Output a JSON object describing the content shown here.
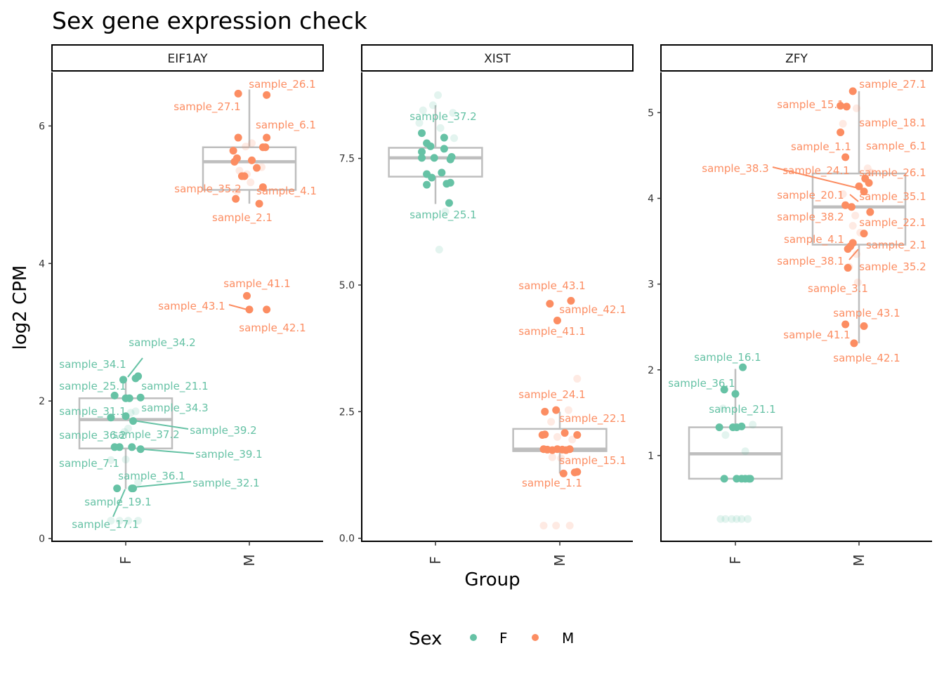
{
  "chart_data": {
    "type": "scatter",
    "title": "Sex gene expression check",
    "xlabel": "Group",
    "ylabel": "log2 CPM",
    "categories": [
      "F",
      "M"
    ],
    "legend": {
      "title": "Sex",
      "position": "bottom",
      "entries": [
        "F",
        "M"
      ]
    },
    "colors": {
      "F": "#66C2A5",
      "M": "#FC8D62",
      "box": "#BEBEBE"
    },
    "grid": false,
    "panels": [
      {
        "name": "EIF1AY",
        "ylim": [
          -0.04,
          6.78
        ],
        "yticks": [
          0,
          2,
          4,
          6
        ],
        "ytick_labels": [
          "0",
          "2",
          "4",
          "6"
        ],
        "boxes": {
          "F": {
            "lower": 0.72,
            "q1": 1.31,
            "median": 1.73,
            "q3": 2.04,
            "upper": 2.3
          },
          "M": {
            "lower": 4.87,
            "q1": 5.07,
            "median": 5.48,
            "q3": 5.69,
            "upper": 6.53
          }
        },
        "points": {
          "F": [
            [
              2.36,
              0.1,
              1
            ],
            [
              2.31,
              -0.02,
              1
            ],
            [
              2.33,
              0.08,
              1
            ],
            [
              2.08,
              -0.09,
              1
            ],
            [
              2.04,
              0,
              1
            ],
            [
              2.04,
              0.03,
              1
            ],
            [
              2.05,
              0.12,
              1
            ],
            [
              1.76,
              -0.12,
              1
            ],
            [
              1.78,
              0,
              1
            ],
            [
              1.71,
              0.06,
              1
            ],
            [
              1.33,
              -0.09,
              1
            ],
            [
              1.33,
              -0.05,
              1
            ],
            [
              1.33,
              0.05,
              1
            ],
            [
              1.3,
              0.12,
              1
            ],
            [
              0.73,
              -0.07,
              1
            ],
            [
              0.73,
              0.05,
              1
            ],
            [
              0.73,
              0.06,
              1
            ],
            [
              1.83,
              0.04,
              0
            ],
            [
              1.85,
              0.08,
              0
            ],
            [
              1.6,
              0.02,
              0
            ],
            [
              1.55,
              -0.01,
              0
            ],
            [
              1.14,
              -0.12,
              0
            ],
            [
              1.15,
              0,
              0
            ],
            [
              0.82,
              0.1,
              0
            ],
            [
              0.26,
              -0.12,
              0
            ],
            [
              0.26,
              -0.05,
              0
            ],
            [
              0.26,
              0.02,
              0
            ],
            [
              0.26,
              0.1,
              0
            ]
          ],
          "M": [
            [
              6.47,
              -0.09,
              1
            ],
            [
              6.45,
              0.14,
              1
            ],
            [
              5.83,
              0.14,
              1
            ],
            [
              5.83,
              -0.09,
              1
            ],
            [
              5.69,
              0.13,
              1
            ],
            [
              5.69,
              0.11,
              1
            ],
            [
              5.64,
              -0.13,
              1
            ],
            [
              5.53,
              -0.1,
              1
            ],
            [
              5.48,
              -0.12,
              1
            ],
            [
              5.5,
              0.02,
              1
            ],
            [
              5.39,
              0.06,
              1
            ],
            [
              5.27,
              -0.04,
              1
            ],
            [
              5.27,
              -0.06,
              1
            ],
            [
              5.11,
              0.11,
              1
            ],
            [
              4.94,
              -0.11,
              1
            ],
            [
              4.87,
              0.08,
              1
            ],
            [
              3.53,
              -0.02,
              1
            ],
            [
              3.33,
              0,
              1
            ],
            [
              3.33,
              0.14,
              1
            ],
            [
              5.75,
              0.02,
              0
            ],
            [
              5.7,
              -0.03,
              0
            ],
            [
              5.4,
              0.1,
              0
            ],
            [
              5.35,
              -0.08,
              0
            ],
            [
              5.3,
              -0.02,
              0
            ],
            [
              5.18,
              0.01,
              0
            ],
            [
              5.05,
              -0.1,
              0
            ]
          ]
        },
        "labels": [
          "sample_26.1",
          "sample_27.1",
          "sample_6.1",
          "sample_35.2",
          "sample_4.1",
          "sample_2.1",
          "sample_41.1",
          "sample_43.1",
          "sample_42.1",
          "sample_34.2",
          "sample_34.1",
          "sample_25.1",
          "sample_21.1",
          "sample_34.3",
          "sample_31.1",
          "sample_39.2",
          "sample_36.2",
          "sample_37.2",
          "sample_39.1",
          "sample_7.1",
          "sample_36.1",
          "sample_32.1",
          "sample_19.1",
          "sample_17.1"
        ]
      },
      {
        "name": "XIST",
        "ylim": [
          -0.06,
          9.2
        ],
        "yticks": [
          0,
          2.5,
          5,
          7.5
        ],
        "ytick_labels": [
          "0.0",
          "2.5",
          "5.0",
          "7.5"
        ],
        "boxes": {
          "F": {
            "lower": 6.6,
            "q1": 7.14,
            "median": 7.51,
            "q3": 7.71,
            "upper": 8.55
          },
          "M": {
            "lower": 1.28,
            "q1": 1.72,
            "median": 1.76,
            "q3": 2.16,
            "upper": 2.5
          }
        },
        "points": {
          "F": [
            [
              8.0,
              -0.11,
              1
            ],
            [
              7.91,
              0.07,
              1
            ],
            [
              7.8,
              -0.07,
              1
            ],
            [
              7.74,
              -0.04,
              1
            ],
            [
              7.69,
              0.07,
              1
            ],
            [
              7.63,
              -0.11,
              1
            ],
            [
              7.53,
              0.13,
              1
            ],
            [
              7.51,
              -0.11,
              1
            ],
            [
              7.51,
              -0.01,
              1
            ],
            [
              7.48,
              0.12,
              1
            ],
            [
              7.19,
              -0.07,
              1
            ],
            [
              7.22,
              0.05,
              1
            ],
            [
              7.12,
              -0.03,
              1
            ],
            [
              6.98,
              -0.07,
              1
            ],
            [
              7.0,
              0.09,
              1
            ],
            [
              7.02,
              0.12,
              1
            ],
            [
              6.62,
              0.11,
              1
            ],
            [
              8.75,
              0.02,
              0
            ],
            [
              8.55,
              -0.02,
              0
            ],
            [
              8.4,
              0.14,
              0
            ],
            [
              8.45,
              -0.1,
              0
            ],
            [
              8.2,
              -0.13,
              0
            ],
            [
              8.1,
              0.04,
              0
            ],
            [
              7.9,
              0.15,
              0
            ],
            [
              6.45,
              0.08,
              0
            ],
            [
              5.7,
              0.03,
              0
            ]
          ],
          "M": [
            [
              4.69,
              0.09,
              1
            ],
            [
              4.63,
              -0.08,
              1
            ],
            [
              4.3,
              -0.02,
              1
            ],
            [
              2.5,
              -0.12,
              1
            ],
            [
              2.53,
              -0.03,
              1
            ],
            [
              2.05,
              -0.12,
              1
            ],
            [
              2.04,
              -0.14,
              1
            ],
            [
              2.08,
              0.04,
              1
            ],
            [
              2.04,
              0.14,
              1
            ],
            [
              1.76,
              -0.13,
              1
            ],
            [
              1.75,
              -0.1,
              1
            ],
            [
              1.74,
              -0.06,
              1
            ],
            [
              1.76,
              -0.02,
              1
            ],
            [
              1.75,
              0.02,
              1
            ],
            [
              1.74,
              0.05,
              1
            ],
            [
              1.76,
              0.08,
              1
            ],
            [
              1.3,
              0.12,
              1
            ],
            [
              1.31,
              0.14,
              1
            ],
            [
              1.28,
              0.03,
              1
            ],
            [
              3.15,
              0.14,
              0
            ],
            [
              2.53,
              0.07,
              0
            ],
            [
              2.3,
              -0.07,
              0
            ],
            [
              2.0,
              -0.02,
              0
            ],
            [
              1.95,
              0.1,
              0
            ],
            [
              1.6,
              -0.06,
              0
            ],
            [
              1.58,
              0.01,
              0
            ],
            [
              0.25,
              -0.13,
              0
            ],
            [
              0.25,
              -0.03,
              0
            ],
            [
              0.25,
              0.08,
              0
            ]
          ]
        },
        "labels": [
          "sample_37.2",
          "sample_25.1",
          "sample_43.1",
          "sample_42.1",
          "sample_41.1",
          "sample_24.1",
          "sample_22.1",
          "sample_15.1",
          "sample_1.1"
        ]
      },
      {
        "name": "ZFY",
        "ylim": [
          0.0,
          5.47
        ],
        "yticks": [
          1,
          2,
          3,
          4,
          5
        ],
        "ytick_labels": [
          "1",
          "2",
          "3",
          "4",
          "5"
        ],
        "boxes": {
          "F": {
            "lower": 0.73,
            "q1": 0.73,
            "median": 1.02,
            "q3": 1.33,
            "upper": 2.01
          },
          "M": {
            "lower": 2.31,
            "q1": 3.46,
            "median": 3.9,
            "q3": 4.29,
            "upper": 5.25
          }
        },
        "points": {
          "F": [
            [
              2.03,
              0.06,
              1
            ],
            [
              1.77,
              -0.09,
              1
            ],
            [
              1.72,
              0.0,
              1
            ],
            [
              1.33,
              -0.13,
              1
            ],
            [
              1.33,
              -0.02,
              1
            ],
            [
              1.33,
              0.01,
              1
            ],
            [
              1.34,
              0.05,
              1
            ],
            [
              0.73,
              -0.09,
              1
            ],
            [
              0.73,
              0.01,
              1
            ],
            [
              0.73,
              0.05,
              1
            ],
            [
              0.73,
              0.08,
              1
            ],
            [
              0.73,
              0.11,
              1
            ],
            [
              0.73,
              0.12,
              1
            ],
            [
              1.36,
              0.14,
              0
            ],
            [
              1.24,
              -0.08,
              0
            ],
            [
              1.05,
              0.08,
              0
            ],
            [
              1.55,
              -0.1,
              0
            ],
            [
              0.26,
              -0.12,
              0
            ],
            [
              0.26,
              -0.08,
              0
            ],
            [
              0.26,
              -0.03,
              0
            ],
            [
              0.26,
              0.01,
              0
            ],
            [
              0.26,
              0.05,
              0
            ],
            [
              0.26,
              0.1,
              0
            ]
          ],
          "M": [
            [
              5.25,
              -0.05,
              1
            ],
            [
              5.08,
              -0.15,
              1
            ],
            [
              5.07,
              -0.1,
              1
            ],
            [
              4.77,
              -0.15,
              1
            ],
            [
              4.48,
              -0.11,
              1
            ],
            [
              4.23,
              0.05,
              1
            ],
            [
              4.18,
              0.08,
              1
            ],
            [
              4.14,
              0.0,
              1
            ],
            [
              4.08,
              0.04,
              1
            ],
            [
              3.92,
              -0.11,
              1
            ],
            [
              3.9,
              -0.06,
              1
            ],
            [
              3.84,
              0.09,
              1
            ],
            [
              3.59,
              0.04,
              1
            ],
            [
              3.48,
              -0.05,
              1
            ],
            [
              3.44,
              -0.07,
              1
            ],
            [
              3.41,
              -0.09,
              1
            ],
            [
              3.19,
              -0.09,
              1
            ],
            [
              2.53,
              -0.11,
              1
            ],
            [
              2.51,
              0.04,
              1
            ],
            [
              2.31,
              -0.04,
              1
            ],
            [
              5.05,
              -0.02,
              0
            ],
            [
              4.87,
              -0.13,
              0
            ],
            [
              4.35,
              0.07,
              0
            ],
            [
              4.3,
              0.1,
              0
            ],
            [
              4.05,
              -0.13,
              0
            ],
            [
              3.8,
              -0.03,
              0
            ],
            [
              3.68,
              -0.05,
              0
            ],
            [
              3.6,
              0.01,
              0
            ],
            [
              3.35,
              -0.02,
              0
            ],
            [
              3.02,
              -0.01,
              0
            ],
            [
              3.2,
              -0.08,
              0
            ]
          ]
        },
        "labels": [
          "sample_27.1",
          "sample_15.1",
          "sample_18.1",
          "sample_1.1",
          "sample_6.1",
          "sample_38.3",
          "sample_24.1",
          "sample_26.1",
          "sample_20.1",
          "sample_35.1",
          "sample_38.2",
          "sample_22.1",
          "sample_4.1",
          "sample_2.1",
          "sample_38.1",
          "sample_35.2",
          "sample_3.1",
          "sample_43.1",
          "sample_41.1",
          "sample_42.1",
          "sample_16.1",
          "sample_36.1",
          "sample_21.1"
        ]
      }
    ]
  }
}
